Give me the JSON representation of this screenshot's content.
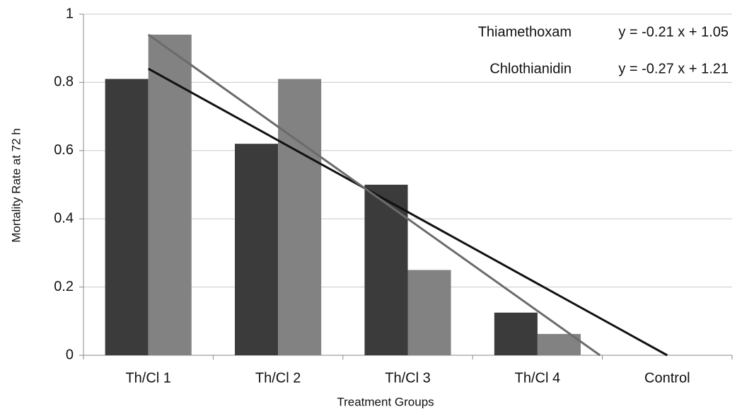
{
  "chart_data": {
    "type": "bar",
    "x_label": "Treatment Groups",
    "y_label": "Mortality Rate at 72 h",
    "categories": [
      "Th/Cl 1",
      "Th/Cl 2",
      "Th/Cl 3",
      "Th/Cl 4",
      "Control"
    ],
    "series": [
      {
        "name": "Thiamethoxam",
        "color": "#3b3b3b",
        "values": [
          0.81,
          0.62,
          0.5,
          0.125,
          0
        ],
        "trend": {
          "slope": -0.21,
          "intercept": 1.05,
          "label": "y = -0.21 x + 1.05",
          "color": "#111111"
        }
      },
      {
        "name": "Chlothianidin",
        "color": "#828282",
        "values": [
          0.94,
          0.81,
          0.25,
          0.0625,
          0
        ],
        "trend": {
          "slope": -0.27,
          "intercept": 1.21,
          "label": "y = -0.27 x + 1.21",
          "color": "#6b6b6b"
        }
      }
    ],
    "ylim": [
      0,
      1
    ],
    "yticks": [
      0,
      0.2,
      0.4,
      0.6,
      0.8,
      1
    ],
    "grid": true
  }
}
